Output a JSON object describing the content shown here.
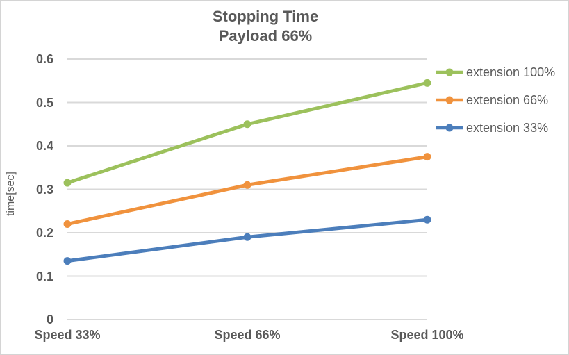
{
  "chart_data": {
    "type": "line",
    "title_lines": [
      "Stopping Time",
      "Payload 66%"
    ],
    "categories": [
      "Speed 33%",
      "Speed 66%",
      "Speed 100%"
    ],
    "series": [
      {
        "name": "extension 100%",
        "color": "#9CC15C",
        "values": [
          0.315,
          0.45,
          0.545
        ]
      },
      {
        "name": "extension 66%",
        "color": "#F0923D",
        "values": [
          0.22,
          0.31,
          0.375
        ]
      },
      {
        "name": "extension 33%",
        "color": "#4C7EBB",
        "values": [
          0.135,
          0.19,
          0.23
        ]
      }
    ],
    "xlabel": "",
    "ylabel": "time[sec]",
    "ylim": [
      0,
      0.6
    ],
    "y_tick_step": 0.1,
    "y_tick_labels": [
      "0.6",
      "0.5",
      "0.4",
      "0.3",
      "0.2",
      "0.1",
      "0"
    ],
    "grid": true,
    "legend_position": "right",
    "marker": "circle",
    "styles": {
      "text_color": "#595959",
      "gridline_color": "#D9D9D9",
      "background": "#FFFFFF",
      "border_color": "#D4D4D4"
    }
  }
}
